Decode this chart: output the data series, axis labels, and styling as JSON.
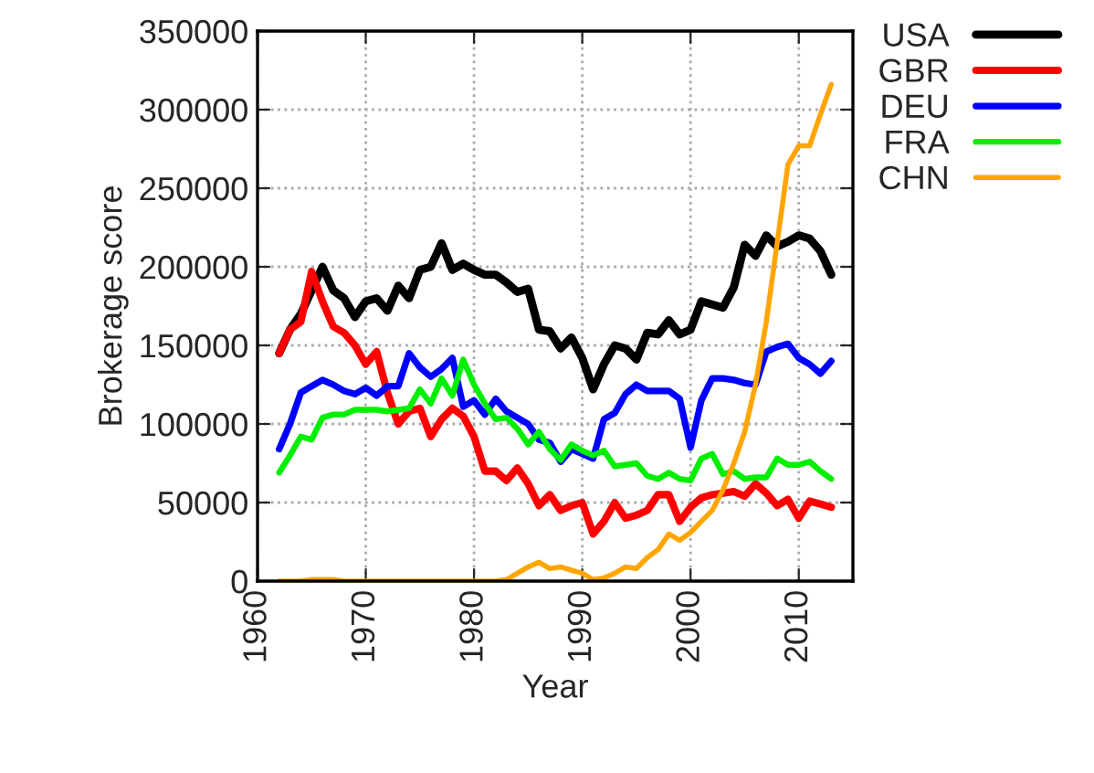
{
  "chart_data": {
    "type": "line",
    "xlabel": "Year",
    "ylabel": "Brokerage score",
    "x": [
      1962,
      1963,
      1964,
      1965,
      1966,
      1967,
      1968,
      1969,
      1970,
      1971,
      1972,
      1973,
      1974,
      1975,
      1976,
      1977,
      1978,
      1979,
      1980,
      1981,
      1982,
      1983,
      1984,
      1985,
      1986,
      1987,
      1988,
      1989,
      1990,
      1991,
      1992,
      1993,
      1994,
      1995,
      1996,
      1997,
      1998,
      1999,
      2000,
      2001,
      2002,
      2003,
      2004,
      2005,
      2006,
      2007,
      2008,
      2009,
      2010,
      2011,
      2012,
      2013
    ],
    "series": [
      {
        "name": "USA",
        "color": "#000000",
        "values": [
          145000,
          160000,
          170000,
          185000,
          200000,
          185000,
          180000,
          168000,
          178000,
          180000,
          172000,
          188000,
          180000,
          198000,
          200000,
          215000,
          198000,
          202000,
          198000,
          195000,
          195000,
          190000,
          184000,
          186000,
          160000,
          159000,
          148000,
          155000,
          142000,
          122000,
          138000,
          150000,
          148000,
          141000,
          158000,
          157000,
          166000,
          157000,
          160000,
          178000,
          176000,
          174000,
          187000,
          214000,
          207000,
          220000,
          213000,
          216000,
          220000,
          218000,
          210000,
          195000
        ]
      },
      {
        "name": "GBR",
        "color": "#ff0000",
        "values": [
          145000,
          160000,
          165000,
          197000,
          178000,
          162000,
          158000,
          150000,
          138000,
          146000,
          120000,
          100000,
          108000,
          110000,
          92000,
          103000,
          110000,
          105000,
          92000,
          70000,
          70000,
          64000,
          72000,
          62000,
          48000,
          55000,
          45000,
          48000,
          50000,
          30000,
          38000,
          50000,
          40000,
          42000,
          45000,
          55000,
          55000,
          38000,
          47000,
          53000,
          55000,
          56000,
          57000,
          54000,
          62000,
          56000,
          48000,
          52000,
          40000,
          51000,
          49000,
          47000
        ]
      },
      {
        "name": "DEU",
        "color": "#0000ff",
        "values": [
          84000,
          100000,
          120000,
          124000,
          128000,
          125000,
          121000,
          119000,
          123000,
          118000,
          124000,
          124000,
          145000,
          136000,
          130000,
          135000,
          142000,
          111000,
          115000,
          106000,
          116000,
          108000,
          104000,
          100000,
          90000,
          88000,
          76000,
          84000,
          81000,
          78000,
          103000,
          107000,
          119000,
          125000,
          121000,
          121000,
          121000,
          116000,
          85000,
          115000,
          129000,
          129000,
          128000,
          126000,
          125000,
          146000,
          149000,
          151000,
          142000,
          138000,
          132000,
          140000
        ]
      },
      {
        "name": "FRA",
        "color": "#00ee00",
        "values": [
          69000,
          80000,
          92000,
          90000,
          104000,
          106000,
          106000,
          109000,
          109000,
          109000,
          108000,
          109000,
          110000,
          122000,
          113000,
          129000,
          118000,
          141000,
          125000,
          113000,
          103000,
          104000,
          97000,
          87000,
          95000,
          84000,
          77000,
          87000,
          83000,
          80000,
          83000,
          73000,
          74000,
          75000,
          67000,
          65000,
          69000,
          65000,
          64000,
          78000,
          81000,
          68000,
          70000,
          65000,
          66000,
          66000,
          78000,
          74000,
          74000,
          76000,
          70000,
          65000
        ]
      },
      {
        "name": "CHN",
        "color": "#ffa500",
        "values": [
          0,
          0,
          0,
          1000,
          1000,
          1000,
          0,
          0,
          0,
          0,
          0,
          0,
          0,
          0,
          0,
          0,
          0,
          0,
          0,
          0,
          0,
          1000,
          5000,
          9000,
          12000,
          8000,
          9000,
          7000,
          5000,
          1000,
          2000,
          5000,
          9000,
          8000,
          15000,
          20000,
          30000,
          26000,
          31000,
          38000,
          45000,
          58000,
          75000,
          95000,
          125000,
          165000,
          215000,
          265000,
          277000,
          277000,
          297000,
          316000
        ]
      }
    ],
    "xlim": [
      1960,
      2015
    ],
    "xticks": [
      1960,
      1970,
      1980,
      1990,
      2000,
      2010
    ],
    "ylim": [
      0,
      350000
    ],
    "yticks": [
      0,
      50000,
      100000,
      150000,
      200000,
      250000,
      300000,
      350000
    ],
    "grid": true,
    "legend": "top right",
    "marker": "none",
    "line_style": "solid"
  }
}
